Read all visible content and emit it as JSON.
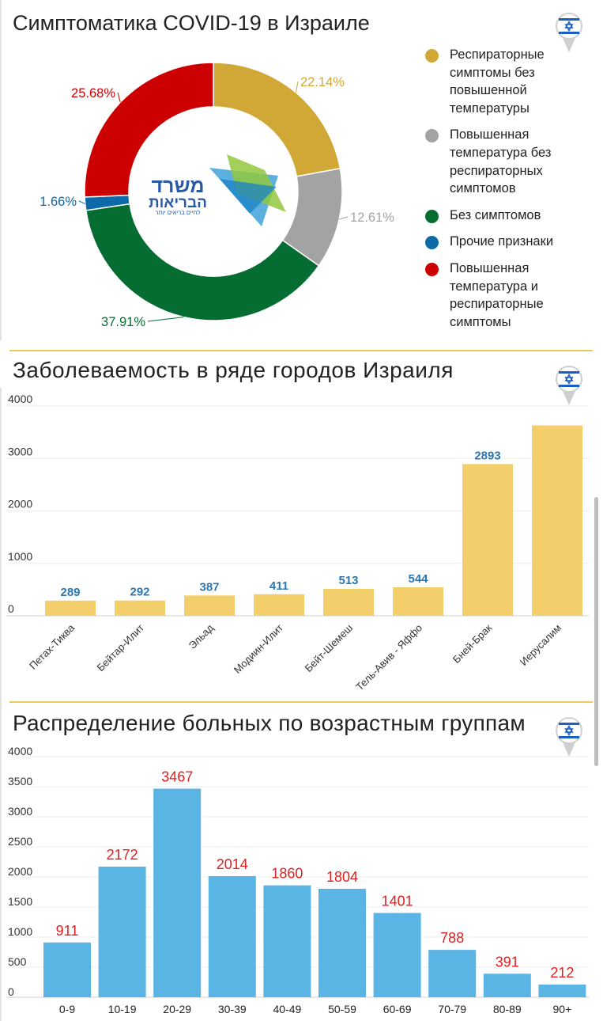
{
  "colors": {
    "gold": "#d1a735",
    "grey": "#a3a3a3",
    "green": "#066d32",
    "blue": "#0c6aa8",
    "red": "#cc0000",
    "bar_yellow": "#f2cf6a",
    "bar_blue": "#5ab4e4",
    "city_label": "#2a77b3",
    "age_label": "#e02020",
    "divider": "#e9c95a"
  },
  "donut": {
    "title": "Симптоматика COVID-19 в Израиле",
    "logo": {
      "text_line1": "משרד",
      "text_line2": "הבריאות",
      "tagline": "לחיים בריאים יותר"
    },
    "pin_icon": "israel-flag-pin-icon",
    "chart_data": {
      "type": "pie",
      "variant": "donut",
      "slices": [
        {
          "label": "Респираторные симптомы без повышенной температуры",
          "value": 22.14,
          "display": "22.14%",
          "color": "#d1a735"
        },
        {
          "label": "Повышенная температура без респираторных симптомов",
          "value": 12.61,
          "display": "12.61%",
          "color": "#a3a3a3"
        },
        {
          "label": "Без симптомов",
          "value": 37.91,
          "display": "37.91%",
          "color": "#066d32"
        },
        {
          "label": "Прочие признаки",
          "value": 1.66,
          "display": "1.66%",
          "color": "#0c6aa8"
        },
        {
          "label": "Повышенная температура и респираторные симптомы",
          "value": 25.68,
          "display": "25.68%",
          "color": "#cc0000"
        }
      ],
      "legend_position": "right"
    },
    "legend": [
      {
        "label": "Респираторные симптомы без повышенной температуры",
        "color": "#d1a735"
      },
      {
        "label": "Повышенная температура без респираторных симптомов",
        "color": "#a3a3a3"
      },
      {
        "label": "Без симптомов",
        "color": "#066d32"
      },
      {
        "label": "Прочие признаки",
        "color": "#0c6aa8"
      },
      {
        "label": "Повышенная температура и респираторные симптомы",
        "color": "#cc0000"
      }
    ]
  },
  "cities": {
    "title": "Заболеваемость в ряде городов Израиля",
    "pin_icon": "israel-flag-pin-icon",
    "chart_data": {
      "type": "bar",
      "categories": [
        "Петах-Тиква",
        "Бейтар-Илит",
        "Эльад",
        "Модиин-Илит",
        "Бейт-Шемеш",
        "Тель-Авив - Яффо",
        "Бней-Брак",
        "Иерусалим"
      ],
      "values": [
        289,
        292,
        387,
        411,
        513,
        544,
        2893,
        3630
      ],
      "value_labels": [
        "289",
        "292",
        "387",
        "411",
        "513",
        "544",
        "2893",
        ""
      ],
      "yticks": [
        "0",
        "1000",
        "2000",
        "3000",
        "4000"
      ],
      "ylim": [
        0,
        4000
      ],
      "grid": true,
      "color": "#f2cf6a"
    }
  },
  "ages": {
    "title": "Распределение больных по возрастным группам",
    "pin_icon": "israel-flag-pin-icon",
    "chart_data": {
      "type": "bar",
      "categories": [
        "0-9",
        "10-19",
        "20-29",
        "30-39",
        "40-49",
        "50-59",
        "60-69",
        "70-79",
        "80-89",
        "90+"
      ],
      "values": [
        911,
        2172,
        3467,
        2014,
        1860,
        1804,
        1401,
        788,
        391,
        212
      ],
      "value_labels": [
        "911",
        "2172",
        "3467",
        "2014",
        "1860",
        "1804",
        "1401",
        "788",
        "391",
        "212"
      ],
      "yticks": [
        "0",
        "500",
        "1000",
        "1500",
        "2000",
        "2500",
        "3000",
        "3500",
        "4000"
      ],
      "ylim": [
        0,
        4000
      ],
      "grid": true,
      "color": "#5ab4e4"
    }
  }
}
